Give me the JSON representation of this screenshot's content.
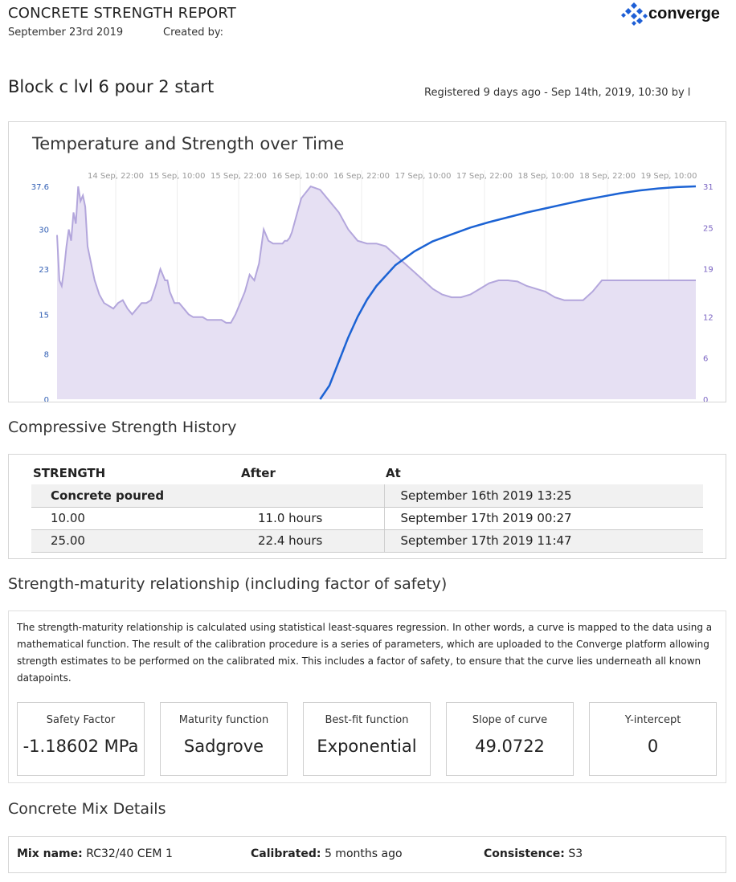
{
  "header": {
    "report_title": "CONCRETE STRENGTH REPORT",
    "date": "September 23rd 2019",
    "created_by": "Created by:",
    "logo_text": "converge",
    "logo_color": "#1e5fd6"
  },
  "block": {
    "title": "Block c lvl 6 pour 2 start",
    "registered": "Registered 9 days ago - Sep 14th, 2019, 10:30 by l"
  },
  "chart": {
    "title": "Temperature and Strength over Time"
  },
  "chart_data": {
    "type": "area",
    "title": "Temperature and Strength over Time",
    "x_tick_labels": [
      "14 Sep, 22:00",
      "15 Sep, 10:00",
      "15 Sep, 22:00",
      "16 Sep, 10:00",
      "16 Sep, 22:00",
      "17 Sep, 10:00",
      "17 Sep, 22:00",
      "18 Sep, 10:00",
      "18 Sep, 22:00",
      "19 Sep, 10:00"
    ],
    "y_left_ticks": [
      "0",
      "8",
      "15",
      "23",
      "30",
      "37.6"
    ],
    "y_left_range": [
      0,
      37.6
    ],
    "y_right_ticks": [
      "0",
      "6",
      "12",
      "19",
      "25",
      "31"
    ],
    "y_right_range": [
      0,
      31
    ],
    "grid": true,
    "colors": {
      "temperature_fill": "#e6e0f3",
      "temperature_line": "#b3a6dc",
      "strength_line": "#1c63d4",
      "left_axis": "#3360b5",
      "right_axis": "#7a63c2"
    },
    "series": [
      {
        "axis": "left",
        "hours": [
          0,
          0.5,
          1,
          1.5,
          2,
          2.5,
          3,
          3.5,
          4,
          4.5,
          5,
          5.5,
          6,
          6.5,
          7,
          7.5,
          8,
          9,
          10,
          11,
          12,
          13,
          14,
          15,
          16,
          17,
          18,
          19,
          20,
          21,
          22,
          22.5,
          23,
          23.5,
          24,
          25,
          26,
          27,
          28,
          29,
          30,
          31,
          32,
          33,
          34,
          35,
          36,
          37,
          38,
          39,
          40,
          41,
          42,
          43,
          44,
          45,
          46,
          47,
          48,
          48.5,
          49,
          49.5,
          50,
          50.5,
          51,
          51.5,
          52,
          54,
          56,
          58,
          60,
          62,
          64,
          66,
          68,
          70,
          72,
          74,
          76,
          78,
          80,
          82,
          84,
          86,
          88,
          90,
          92,
          94,
          96,
          98,
          100,
          102,
          104,
          106,
          108,
          110,
          112,
          114,
          116,
          118,
          120,
          122,
          124,
          126,
          128,
          130,
          132,
          134,
          136
        ],
        "values": [
          29,
          21,
          20,
          23,
          27,
          30,
          28,
          33,
          31,
          37.6,
          35,
          36,
          34,
          27,
          25,
          23,
          21,
          18.5,
          17,
          16.5,
          16,
          17,
          17.5,
          16,
          15,
          16,
          17,
          17,
          17.5,
          20,
          23,
          22,
          21,
          21,
          19,
          17,
          17,
          16,
          15,
          14.5,
          14.5,
          14.5,
          14,
          14,
          14,
          14,
          13.5,
          13.5,
          15,
          17,
          19,
          22,
          21,
          24,
          30,
          28,
          27.5,
          27.5,
          27.5,
          28,
          28,
          28.5,
          29.5,
          31,
          32.5,
          34,
          35.5,
          37.6,
          37,
          35,
          33,
          30,
          28,
          27.5,
          27.5,
          27,
          25.5,
          24,
          22.5,
          21,
          19.5,
          18.5,
          18,
          18,
          18.5,
          19.5,
          20.5,
          21,
          21,
          20.8,
          20,
          19.5,
          19,
          18,
          17.5,
          17.5,
          17.5,
          19,
          21,
          21,
          21,
          21,
          21,
          21,
          21,
          21,
          21,
          21,
          21
        ]
      },
      {
        "axis": "right",
        "hours": [
          56,
          58,
          60,
          62,
          64,
          66,
          68,
          70,
          72,
          76,
          80,
          84,
          88,
          92,
          96,
          100,
          104,
          108,
          112,
          116,
          120,
          124,
          128,
          132,
          136
        ],
        "values": [
          0,
          2,
          5.5,
          9,
          12,
          14.5,
          16.5,
          18,
          19.5,
          21.5,
          23,
          24,
          25,
          25.8,
          26.5,
          27.2,
          27.8,
          28.4,
          29,
          29.5,
          30,
          30.4,
          30.7,
          30.9,
          31
        ]
      }
    ]
  },
  "strength_history": {
    "title": "Compressive Strength History",
    "headers": [
      "STRENGTH",
      "After",
      "At"
    ],
    "rows": [
      {
        "strength": "Concrete poured",
        "after": "",
        "at": "September 16th 2019 13:25"
      },
      {
        "strength": "10.00",
        "after": "11.0 hours",
        "at": "September 17th 2019 00:27"
      },
      {
        "strength": "25.00",
        "after": "22.4 hours",
        "at": "September 17th 2019 11:47"
      }
    ]
  },
  "maturity": {
    "title": "Strength-maturity relationship (including factor of safety)",
    "description": "The strength-maturity relationship is calculated using statistical least-squares regression. In other words, a curve is mapped to the data using a mathematical function. The result of the calibration procedure is a series of parameters, which are uploaded to the Converge platform allowing strength estimates to be performed on the calibrated mix. This includes a factor of safety, to ensure that the curve lies underneath all known datapoints.",
    "cards": [
      {
        "label": "Safety Factor",
        "value": "-1.18602 MPa"
      },
      {
        "label": "Maturity function",
        "value": "Sadgrove"
      },
      {
        "label": "Best-fit function",
        "value": "Exponential"
      },
      {
        "label": "Slope of curve",
        "value": "49.0722"
      },
      {
        "label": "Y-intercept",
        "value": "0"
      }
    ]
  },
  "mix": {
    "title": "Concrete Mix Details",
    "name_label": "Mix name:",
    "name_value": "RC32/40 CEM 1",
    "calibrated_label": "Calibrated:",
    "calibrated_value": "5 months ago",
    "consistence_label": "Consistence:",
    "consistence_value": "S3"
  }
}
